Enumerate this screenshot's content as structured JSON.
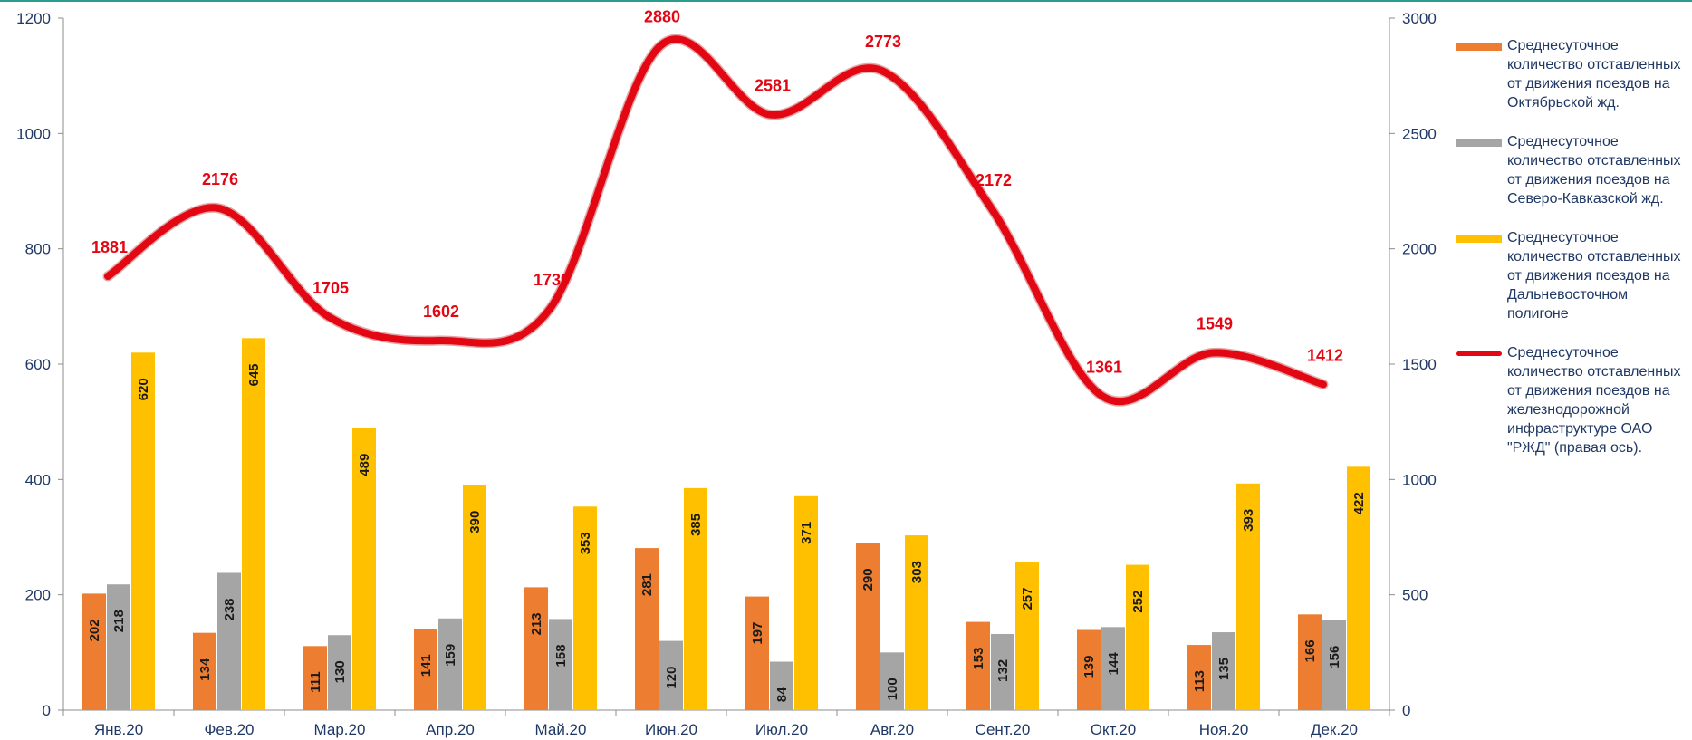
{
  "chart_data": {
    "type": "bar",
    "categories": [
      "Янв.20",
      "Фев.20",
      "Мар.20",
      "Апр.20",
      "Май.20",
      "Июн.20",
      "Июл.20",
      "Авг.20",
      "Сент.20",
      "Окт.20",
      "Ноя.20",
      "Дек.20"
    ],
    "series": [
      {
        "name": "Среднесуточное количество отставленных от движения поездов на Октябрьской жд.",
        "type": "bar",
        "axis": "left",
        "color": "#ed7d31",
        "values": [
          202,
          134,
          111,
          141,
          213,
          281,
          197,
          290,
          153,
          139,
          113,
          166
        ]
      },
      {
        "name": "Среднесуточное количество отставленных от движения поездов на Северо-Кавказской жд.",
        "type": "bar",
        "axis": "left",
        "color": "#a5a5a5",
        "values": [
          218,
          238,
          130,
          159,
          158,
          120,
          84,
          100,
          132,
          144,
          135,
          156
        ]
      },
      {
        "name": "Среднесуточное количество отставленных от движения поездов на Дальневосточном полигоне",
        "type": "bar",
        "axis": "left",
        "color": "#ffc000",
        "values": [
          620,
          645,
          489,
          390,
          353,
          385,
          371,
          303,
          257,
          252,
          393,
          422
        ]
      },
      {
        "name": "Среднесуточное количество отставленных от движения поездов на железнодорожной инфраструктуре ОАО \"РЖД\" (правая ось).",
        "type": "line",
        "axis": "right",
        "color": "#e30613",
        "values": [
          1881,
          2176,
          1705,
          1602,
          1739,
          2880,
          2581,
          2773,
          2172,
          1361,
          1549,
          1412
        ]
      }
    ],
    "left_axis": {
      "range": [
        0,
        1200
      ],
      "ticks": [
        "0",
        "200",
        "400",
        "600",
        "800",
        "1000",
        "1200"
      ]
    },
    "right_axis": {
      "range": [
        0,
        3000
      ],
      "ticks": [
        "0",
        "500",
        "1000",
        "1500",
        "2000",
        "2500",
        "3000"
      ]
    },
    "legend_position": "right",
    "grid": false
  }
}
